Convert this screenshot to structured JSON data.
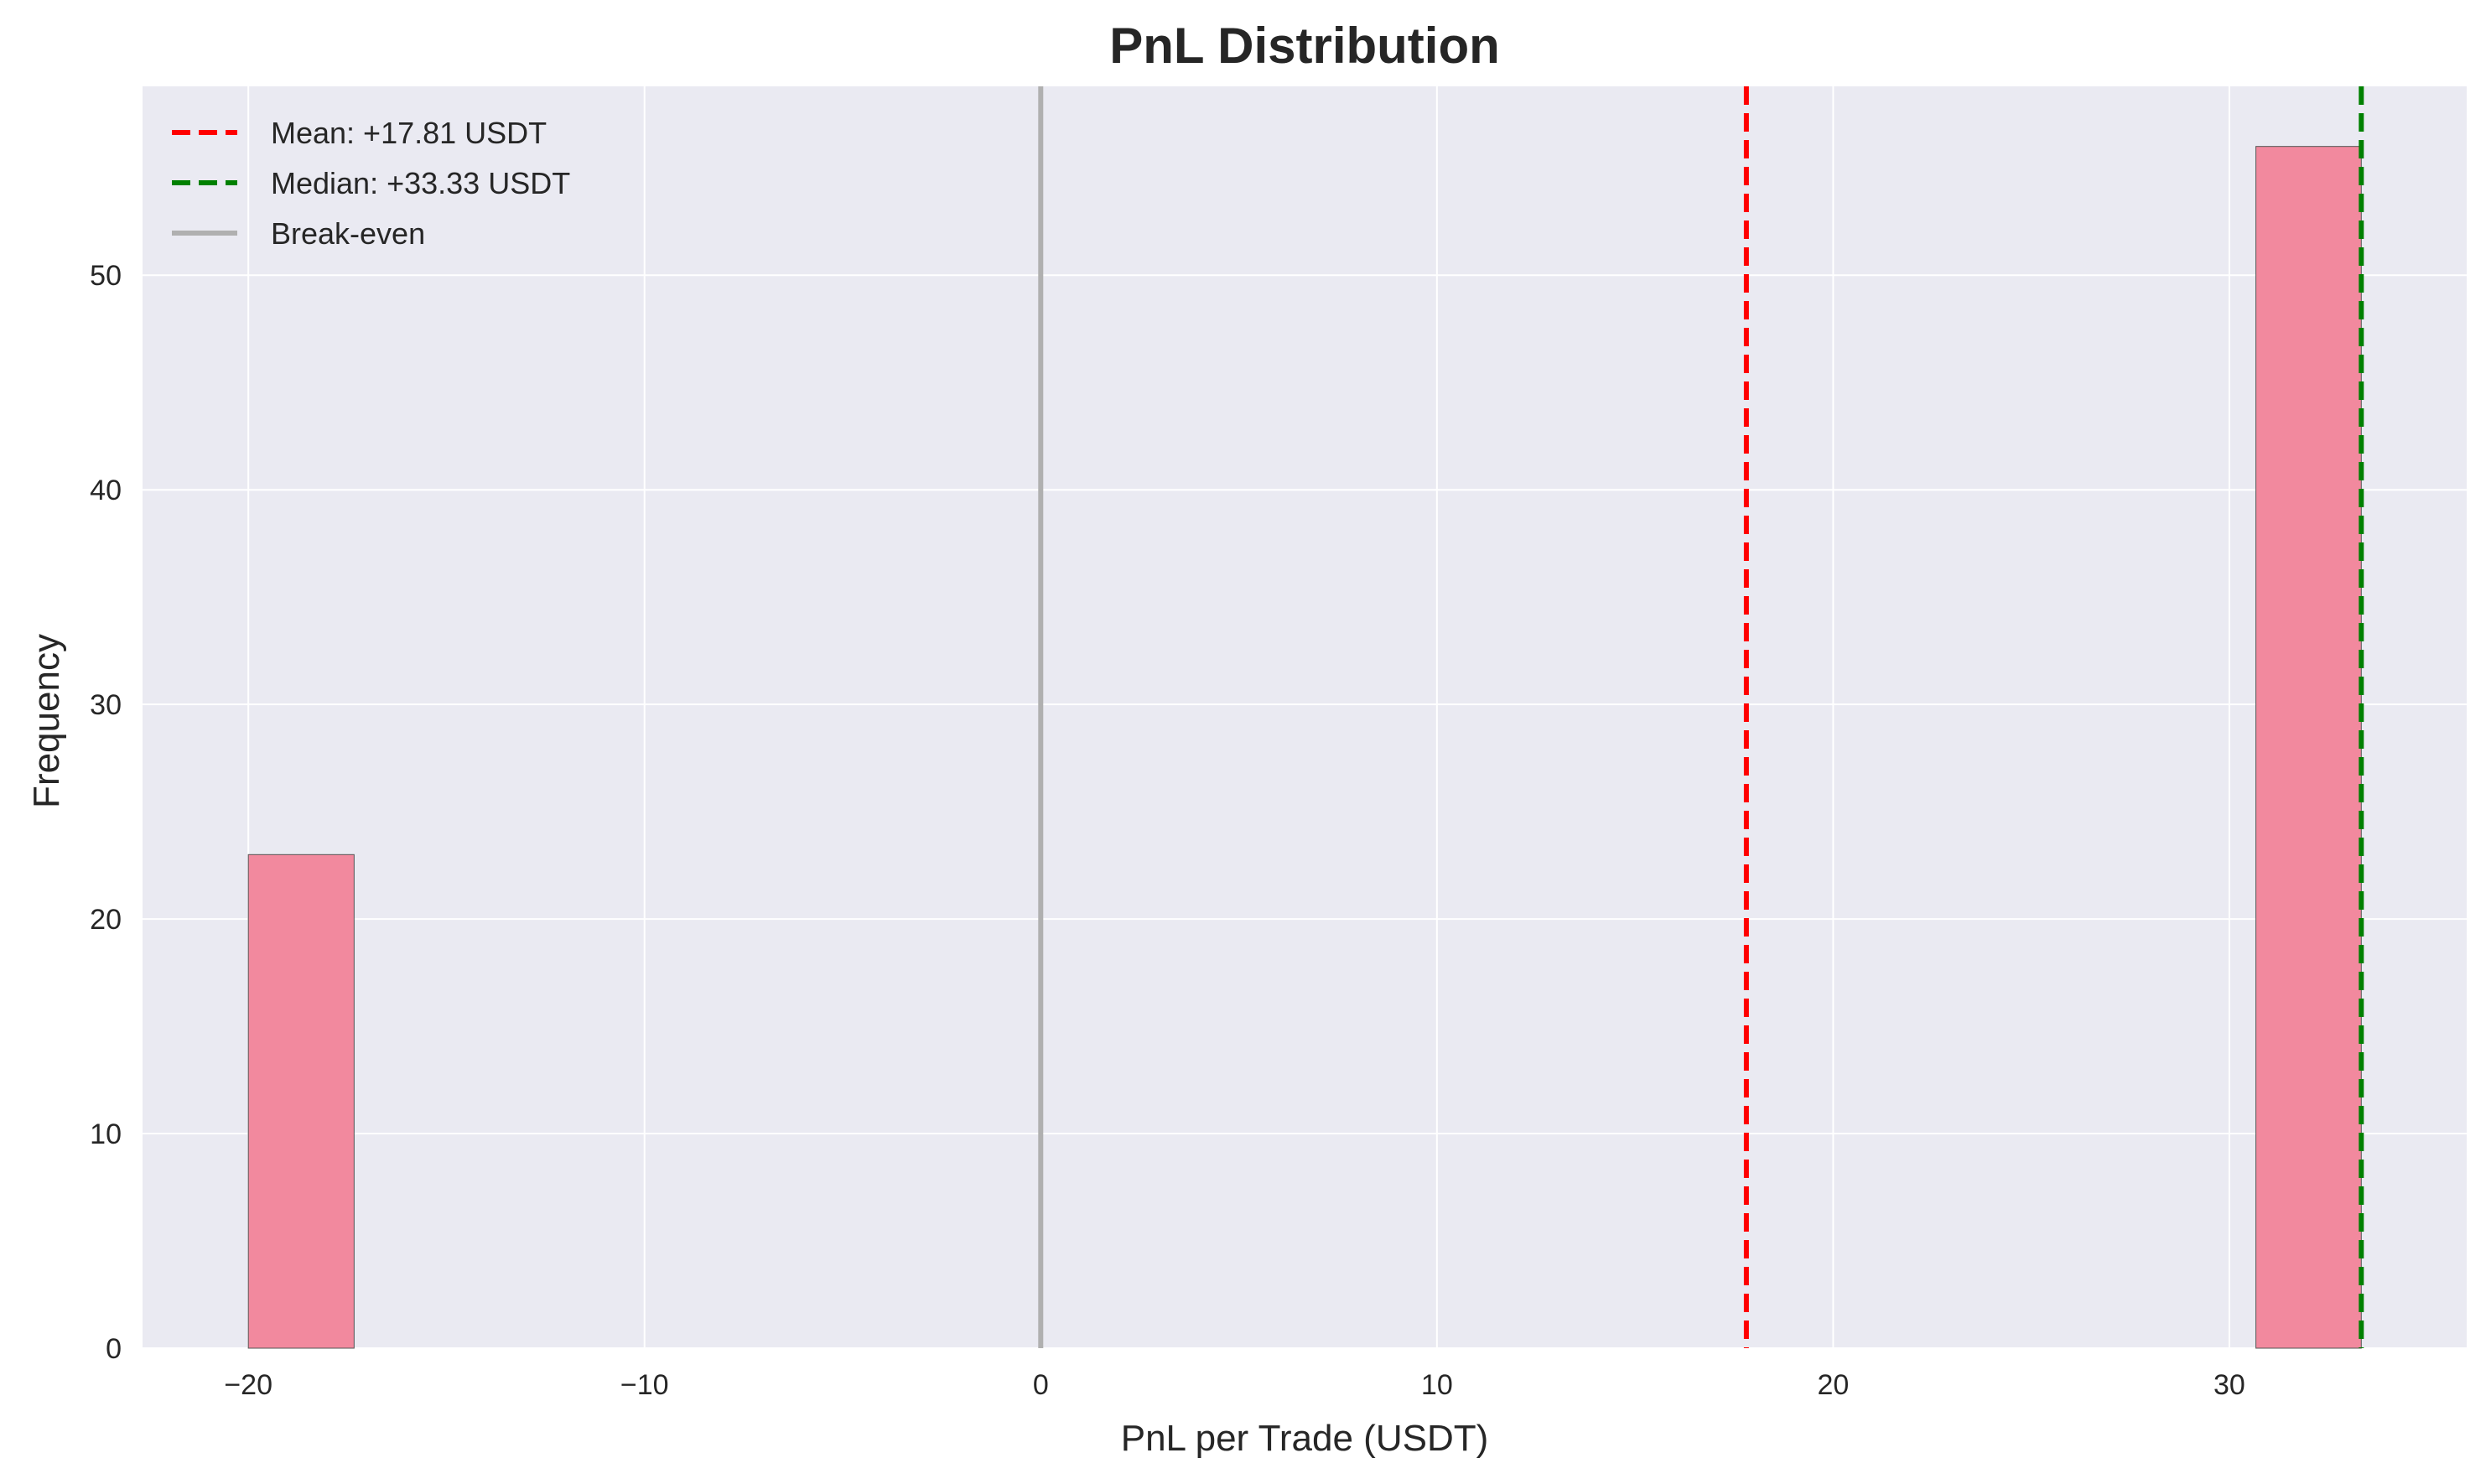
{
  "chart_data": {
    "type": "bar",
    "title": "PnL Distribution",
    "xlabel": "PnL per Trade (USDT)",
    "ylabel": "Frequency",
    "xlim": [
      -22.67,
      35.99
    ],
    "ylim": [
      0,
      58.8
    ],
    "x_ticks": [
      {
        "value": -20,
        "label": "−20"
      },
      {
        "value": -10,
        "label": "−10"
      },
      {
        "value": 0,
        "label": "0"
      },
      {
        "value": 10,
        "label": "10"
      },
      {
        "value": 20,
        "label": "20"
      },
      {
        "value": 30,
        "label": "30"
      }
    ],
    "y_ticks": [
      {
        "value": 0,
        "label": "0"
      },
      {
        "value": 10,
        "label": "10"
      },
      {
        "value": 20,
        "label": "20"
      },
      {
        "value": 30,
        "label": "30"
      },
      {
        "value": 40,
        "label": "40"
      },
      {
        "value": 50,
        "label": "50"
      }
    ],
    "bins": [
      {
        "x0": -20,
        "x1": -17.33,
        "count": 23
      },
      {
        "x0": 30.67,
        "x1": 33.33,
        "count": 56
      }
    ],
    "bar_color": "#f2899e",
    "grid": true,
    "background": "#eaeaf2",
    "legend_position": "top-left",
    "reference_lines": [
      {
        "name": "Mean: +17.81 USDT",
        "value": 17.81,
        "color": "#ff0000",
        "style": "dashed"
      },
      {
        "name": "Median: +33.33 USDT",
        "value": 33.33,
        "color": "#008000",
        "style": "dashed"
      },
      {
        "name": "Break-even",
        "value": 0,
        "color": "#b0b0b0",
        "style": "solid"
      }
    ]
  }
}
